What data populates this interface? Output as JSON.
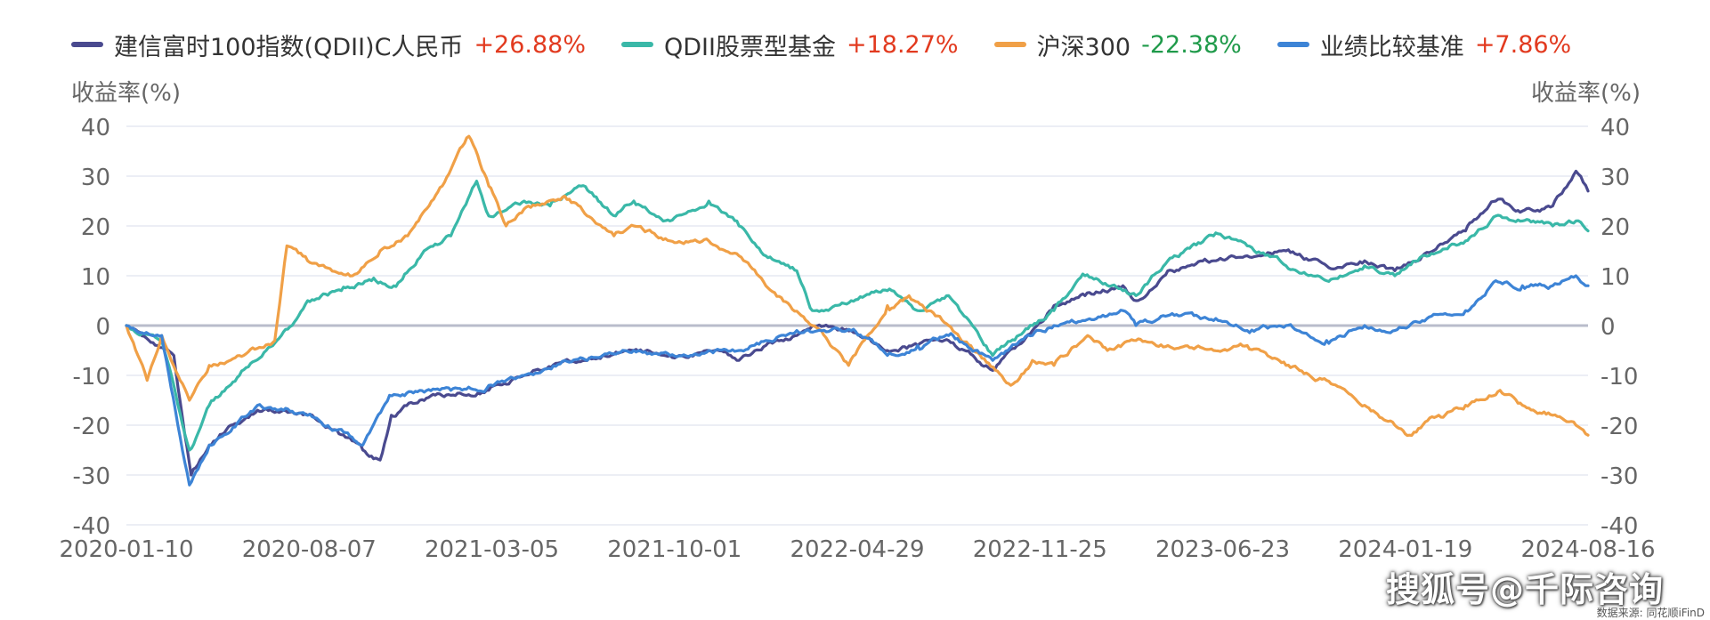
{
  "chart_data": {
    "type": "line",
    "ylabel_left": "收益率(%)",
    "ylabel_right": "收益率(%)",
    "ylim": [
      -40,
      40
    ],
    "yticks": [
      40,
      30,
      20,
      10,
      0,
      -10,
      -20,
      -30,
      -40
    ],
    "xlim": [
      "2020-01-10",
      "2024-08-30"
    ],
    "x_tick_labels": [
      "2020-01-10",
      "2020-08-07",
      "2021-03-05",
      "2021-10-01",
      "2022-04-29",
      "2022-11-25",
      "2023-06-23",
      "2024-01-19",
      "2024-08-16"
    ],
    "grid": true,
    "legend_position": "top",
    "series": [
      {
        "name": "建信富时100指数(QDII)C人民币",
        "change": "+26.88%",
        "change_color": "#e23a1f",
        "color": "#4a4a8f",
        "points": [
          [
            "2020-01-10",
            0
          ],
          [
            "2020-02-15",
            -4
          ],
          [
            "2020-03-05",
            -6
          ],
          [
            "2020-03-25",
            -30
          ],
          [
            "2020-04-15",
            -24
          ],
          [
            "2020-05-10",
            -20
          ],
          [
            "2020-06-10",
            -17
          ],
          [
            "2020-07-10",
            -17
          ],
          [
            "2020-08-07",
            -18
          ],
          [
            "2020-09-10",
            -21
          ],
          [
            "2020-10-10",
            -25
          ],
          [
            "2020-10-30",
            -27
          ],
          [
            "2020-11-12",
            -18
          ],
          [
            "2020-12-15",
            -15
          ],
          [
            "2021-01-20",
            -14
          ],
          [
            "2021-03-05",
            -13
          ],
          [
            "2021-04-15",
            -10
          ],
          [
            "2021-06-01",
            -7
          ],
          [
            "2021-07-15",
            -6
          ],
          [
            "2021-08-20",
            -5
          ],
          [
            "2021-10-01",
            -6
          ],
          [
            "2021-11-15",
            -5
          ],
          [
            "2021-12-20",
            -7
          ],
          [
            "2022-01-20",
            -4
          ],
          [
            "2022-02-25",
            -2
          ],
          [
            "2022-03-15",
            0
          ],
          [
            "2022-04-29",
            -1
          ],
          [
            "2022-06-10",
            -5
          ],
          [
            "2022-07-15",
            -4
          ],
          [
            "2022-08-20",
            -3
          ],
          [
            "2022-10-10",
            -9
          ],
          [
            "2022-11-25",
            -1
          ],
          [
            "2022-12-20",
            4
          ],
          [
            "2023-01-25",
            6
          ],
          [
            "2023-03-10",
            8
          ],
          [
            "2023-03-25",
            5
          ],
          [
            "2023-05-01",
            11
          ],
          [
            "2023-06-23",
            13
          ],
          [
            "2023-08-01",
            14
          ],
          [
            "2023-09-15",
            15
          ],
          [
            "2023-11-01",
            12
          ],
          [
            "2023-12-15",
            13
          ],
          [
            "2024-01-19",
            11
          ],
          [
            "2024-02-20",
            14
          ],
          [
            "2024-04-10",
            19
          ],
          [
            "2024-05-15",
            25
          ],
          [
            "2024-06-15",
            23
          ],
          [
            "2024-07-20",
            24
          ],
          [
            "2024-08-16",
            31
          ],
          [
            "2024-08-30",
            27
          ]
        ]
      },
      {
        "name": "QDII股票型基金",
        "change": "+18.27%",
        "change_color": "#e23a1f",
        "color": "#3ab8a8",
        "points": [
          [
            "2020-01-10",
            0
          ],
          [
            "2020-02-20",
            -3
          ],
          [
            "2020-03-23",
            -25
          ],
          [
            "2020-04-15",
            -16
          ],
          [
            "2020-05-20",
            -10
          ],
          [
            "2020-06-20",
            -5
          ],
          [
            "2020-07-20",
            0
          ],
          [
            "2020-08-07",
            5
          ],
          [
            "2020-09-15",
            7
          ],
          [
            "2020-10-20",
            9
          ],
          [
            "2020-11-15",
            8
          ],
          [
            "2020-12-20",
            15
          ],
          [
            "2021-01-20",
            18
          ],
          [
            "2021-02-19",
            29
          ],
          [
            "2021-03-05",
            22
          ],
          [
            "2021-04-15",
            25
          ],
          [
            "2021-05-15",
            24
          ],
          [
            "2021-06-20",
            28
          ],
          [
            "2021-07-30",
            22
          ],
          [
            "2021-08-20",
            25
          ],
          [
            "2021-10-01",
            21
          ],
          [
            "2021-11-15",
            25
          ],
          [
            "2021-12-20",
            20
          ],
          [
            "2022-01-20",
            14
          ],
          [
            "2022-02-25",
            11
          ],
          [
            "2022-03-15",
            3
          ],
          [
            "2022-04-29",
            5
          ],
          [
            "2022-06-10",
            7
          ],
          [
            "2022-07-15",
            3
          ],
          [
            "2022-08-20",
            6
          ],
          [
            "2022-10-10",
            -6
          ],
          [
            "2022-11-25",
            0
          ],
          [
            "2022-12-20",
            3
          ],
          [
            "2023-01-25",
            10
          ],
          [
            "2023-03-10",
            7
          ],
          [
            "2023-03-25",
            6
          ],
          [
            "2023-05-01",
            13
          ],
          [
            "2023-06-23",
            18
          ],
          [
            "2023-08-01",
            16
          ],
          [
            "2023-09-15",
            12
          ],
          [
            "2023-11-01",
            9
          ],
          [
            "2023-12-15",
            12
          ],
          [
            "2024-01-19",
            10
          ],
          [
            "2024-02-20",
            14
          ],
          [
            "2024-04-10",
            17
          ],
          [
            "2024-05-15",
            22
          ],
          [
            "2024-06-15",
            21
          ],
          [
            "2024-07-20",
            20
          ],
          [
            "2024-08-16",
            21
          ],
          [
            "2024-08-30",
            19
          ]
        ]
      },
      {
        "name": "沪深300",
        "change": "-22.38%",
        "change_color": "#1f9a4a",
        "color": "#f0a047",
        "points": [
          [
            "2020-01-10",
            0
          ],
          [
            "2020-02-03",
            -11
          ],
          [
            "2020-02-20",
            -2
          ],
          [
            "2020-03-23",
            -15
          ],
          [
            "2020-04-15",
            -8
          ],
          [
            "2020-05-25",
            -6
          ],
          [
            "2020-06-30",
            -3
          ],
          [
            "2020-07-14",
            16
          ],
          [
            "2020-08-07",
            13
          ],
          [
            "2020-09-28",
            10
          ],
          [
            "2020-10-30",
            15
          ],
          [
            "2020-12-01",
            18
          ],
          [
            "2021-01-10",
            28
          ],
          [
            "2021-02-10",
            38
          ],
          [
            "2021-03-05",
            28
          ],
          [
            "2021-03-25",
            20
          ],
          [
            "2021-04-20",
            24
          ],
          [
            "2021-06-01",
            26
          ],
          [
            "2021-07-28",
            18
          ],
          [
            "2021-08-20",
            20
          ],
          [
            "2021-10-01",
            17
          ],
          [
            "2021-11-15",
            17
          ],
          [
            "2021-12-20",
            14
          ],
          [
            "2022-01-20",
            8
          ],
          [
            "2022-03-15",
            0
          ],
          [
            "2022-04-26",
            -8
          ],
          [
            "2022-06-10",
            4
          ],
          [
            "2022-07-05",
            6
          ],
          [
            "2022-08-20",
            0
          ],
          [
            "2022-10-31",
            -12
          ],
          [
            "2022-11-25",
            -7
          ],
          [
            "2022-12-20",
            -8
          ],
          [
            "2023-01-28",
            -2
          ],
          [
            "2023-02-20",
            -5
          ],
          [
            "2023-03-25",
            -3
          ],
          [
            "2023-05-01",
            -4
          ],
          [
            "2023-06-23",
            -5
          ],
          [
            "2023-08-01",
            -4
          ],
          [
            "2023-09-15",
            -8
          ],
          [
            "2023-11-01",
            -11
          ],
          [
            "2023-12-15",
            -16
          ],
          [
            "2024-01-19",
            -20
          ],
          [
            "2024-02-05",
            -22
          ],
          [
            "2024-03-10",
            -18
          ],
          [
            "2024-04-10",
            -16
          ],
          [
            "2024-05-20",
            -13
          ],
          [
            "2024-06-15",
            -16
          ],
          [
            "2024-07-20",
            -18
          ],
          [
            "2024-08-16",
            -20
          ],
          [
            "2024-08-30",
            -22
          ]
        ]
      },
      {
        "name": "业绩比较基准",
        "change": "+7.86%",
        "change_color": "#e23a1f",
        "color": "#3d84d6",
        "points": [
          [
            "2020-01-10",
            0
          ],
          [
            "2020-02-20",
            -2
          ],
          [
            "2020-03-23",
            -32
          ],
          [
            "2020-04-15",
            -24
          ],
          [
            "2020-05-20",
            -19
          ],
          [
            "2020-06-10",
            -16
          ],
          [
            "2020-07-10",
            -17
          ],
          [
            "2020-08-07",
            -18
          ],
          [
            "2020-09-10",
            -21
          ],
          [
            "2020-10-10",
            -24
          ],
          [
            "2020-11-10",
            -14
          ],
          [
            "2020-12-15",
            -13
          ],
          [
            "2021-01-20",
            -13
          ],
          [
            "2021-03-05",
            -12
          ],
          [
            "2021-04-15",
            -10
          ],
          [
            "2021-06-01",
            -7
          ],
          [
            "2021-07-15",
            -6
          ],
          [
            "2021-08-20",
            -5
          ],
          [
            "2021-10-01",
            -6
          ],
          [
            "2021-11-15",
            -5
          ],
          [
            "2021-12-20",
            -5
          ],
          [
            "2022-01-20",
            -3
          ],
          [
            "2022-02-25",
            -1
          ],
          [
            "2022-04-29",
            -1
          ],
          [
            "2022-06-10",
            -6
          ],
          [
            "2022-07-15",
            -4
          ],
          [
            "2022-08-20",
            -2
          ],
          [
            "2022-10-10",
            -7
          ],
          [
            "2022-11-25",
            -2
          ],
          [
            "2022-12-20",
            0
          ],
          [
            "2023-01-25",
            1
          ],
          [
            "2023-03-10",
            3
          ],
          [
            "2023-03-25",
            0
          ],
          [
            "2023-05-01",
            2
          ],
          [
            "2023-06-23",
            1
          ],
          [
            "2023-08-01",
            -1
          ],
          [
            "2023-09-15",
            0
          ],
          [
            "2023-11-01",
            -3
          ],
          [
            "2023-12-15",
            0
          ],
          [
            "2024-01-19",
            -1
          ],
          [
            "2024-02-20",
            1
          ],
          [
            "2024-04-10",
            3
          ],
          [
            "2024-05-15",
            9
          ],
          [
            "2024-06-15",
            8
          ],
          [
            "2024-07-20",
            8
          ],
          [
            "2024-08-16",
            10
          ],
          [
            "2024-08-30",
            8
          ]
        ]
      }
    ]
  },
  "watermark": "搜狐号@千际咨询",
  "source": "数据来源: 同花顺iFinD"
}
